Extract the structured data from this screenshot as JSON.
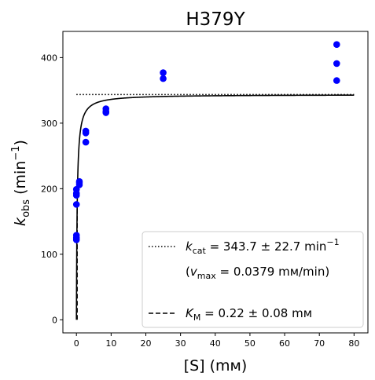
{
  "chart_data": {
    "type": "scatter",
    "title": "H379Y",
    "xlabel": "[S] (mм)",
    "ylabel": "k_obs (min⁻¹)",
    "xlim": [
      -3.9,
      84
    ],
    "ylim": [
      -20,
      440
    ],
    "xticks": [
      0,
      10,
      20,
      30,
      40,
      50,
      60,
      70,
      80
    ],
    "yticks": [
      0,
      100,
      200,
      300,
      400
    ],
    "grid": false,
    "legend_position": "lower right",
    "point_color": "#0000ff",
    "points": [
      {
        "x": 0.0,
        "y": 122
      },
      {
        "x": 0.0,
        "y": 125
      },
      {
        "x": 0.0,
        "y": 129
      },
      {
        "x": 0.0,
        "y": 176
      },
      {
        "x": 0.0,
        "y": 190
      },
      {
        "x": 0.0,
        "y": 193
      },
      {
        "x": 0.0,
        "y": 199
      },
      {
        "x": 0.85,
        "y": 206
      },
      {
        "x": 0.85,
        "y": 209
      },
      {
        "x": 0.85,
        "y": 211
      },
      {
        "x": 2.7,
        "y": 271
      },
      {
        "x": 2.7,
        "y": 285
      },
      {
        "x": 2.7,
        "y": 288
      },
      {
        "x": 8.5,
        "y": 316
      },
      {
        "x": 8.5,
        "y": 318
      },
      {
        "x": 8.5,
        "y": 322
      },
      {
        "x": 25.0,
        "y": 368
      },
      {
        "x": 25.0,
        "y": 377
      },
      {
        "x": 75.0,
        "y": 365
      },
      {
        "x": 75.0,
        "y": 391
      },
      {
        "x": 75.0,
        "y": 420
      }
    ],
    "fit": {
      "vmax": 343.7,
      "km": 0.22,
      "x_range": [
        0,
        80
      ]
    },
    "kcat_line": {
      "y": 343.7,
      "x_range": [
        0,
        80
      ],
      "style": "dotted"
    },
    "km_line": {
      "x": 0.22,
      "y_range": [
        0,
        171.85
      ],
      "style": "dashed"
    },
    "legend": [
      {
        "style": "dotted",
        "text": "k_cat = 343.7 ± 22.7 min⁻¹"
      },
      {
        "style": "none",
        "text": "(v_max = 0.0379 mм/min)"
      },
      {
        "style": "dashed",
        "text": "K_M = 0.22 ± 0.08 mм"
      }
    ]
  }
}
